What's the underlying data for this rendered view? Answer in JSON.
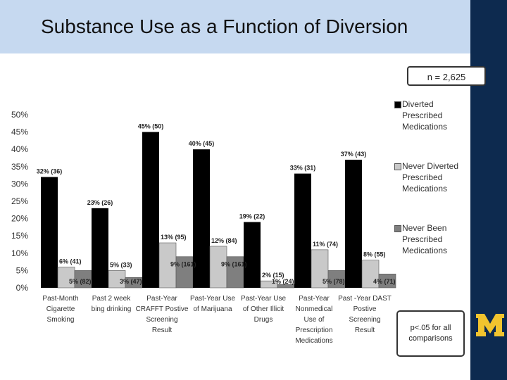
{
  "title": "Substance Use as a Function of Diversion",
  "sample_note": "n = 2,625",
  "significance_note": "p<.05 for all comparisons",
  "colors": {
    "title_band": "#c6d9f0",
    "right_bar": "#0d2a4f",
    "logo_gold": "#f2c42e",
    "diverted": "#000000",
    "never_diverted": "#c9c9c9",
    "never_been_prescribed": "#7f7f7f"
  },
  "chart_data": {
    "type": "bar",
    "ylim": [
      0,
      50
    ],
    "yticks": [
      "0%",
      "5%",
      "10%",
      "15%",
      "20%",
      "25%",
      "30%",
      "35%",
      "40%",
      "45%",
      "50%"
    ],
    "categories": [
      [
        "Past-Month",
        "Cigarette",
        "Smoking"
      ],
      [
        "Past 2 week",
        "bing drinking"
      ],
      [
        "Past-Year",
        "CRAFFT Postive",
        "Screening",
        "Result"
      ],
      [
        "Past-Year Use",
        "of Marijuana"
      ],
      [
        "Past-Year Use",
        "of Other Illicit",
        "Drugs"
      ],
      [
        "Past-Year",
        "Nonmedical",
        "Use of",
        "Prescription",
        "Medications"
      ],
      [
        "Past -Year DAST",
        "Postive",
        "Screening",
        "Result"
      ]
    ],
    "series": [
      {
        "name": "Diverted Prescribed Medications",
        "name_lines": [
          "Diverted",
          "Prescribed",
          "Medications"
        ],
        "values": [
          32,
          23,
          45,
          40,
          19,
          33,
          37
        ],
        "labels": [
          "32% (36)",
          "23% (26)",
          "45% (50)",
          "40% (45)",
          "19% (22)",
          "33% (31)",
          "37% (43)"
        ]
      },
      {
        "name": "Never Diverted Prescribed Medications",
        "name_lines": [
          "Never Diverted",
          "Prescribed",
          "Medications"
        ],
        "values": [
          6,
          5,
          13,
          12,
          2,
          11,
          8
        ],
        "labels": [
          "6% (41)",
          "5% (33)",
          "13% (95)",
          "12% (84)",
          "2% (15)",
          "11% (74)",
          "8% (55)"
        ]
      },
      {
        "name": "Never Been Prescribed Medications",
        "name_lines": [
          "Never Been",
          "Prescribed",
          "Medications"
        ],
        "values": [
          5,
          3,
          9,
          9,
          1,
          5,
          4
        ],
        "labels": [
          "5% (82)",
          "3% (47)",
          "9% (161)",
          "9% (161)",
          "1% (24)",
          "5% (78)",
          "4% (71)"
        ]
      }
    ],
    "legend_position": "right",
    "grid": false
  }
}
